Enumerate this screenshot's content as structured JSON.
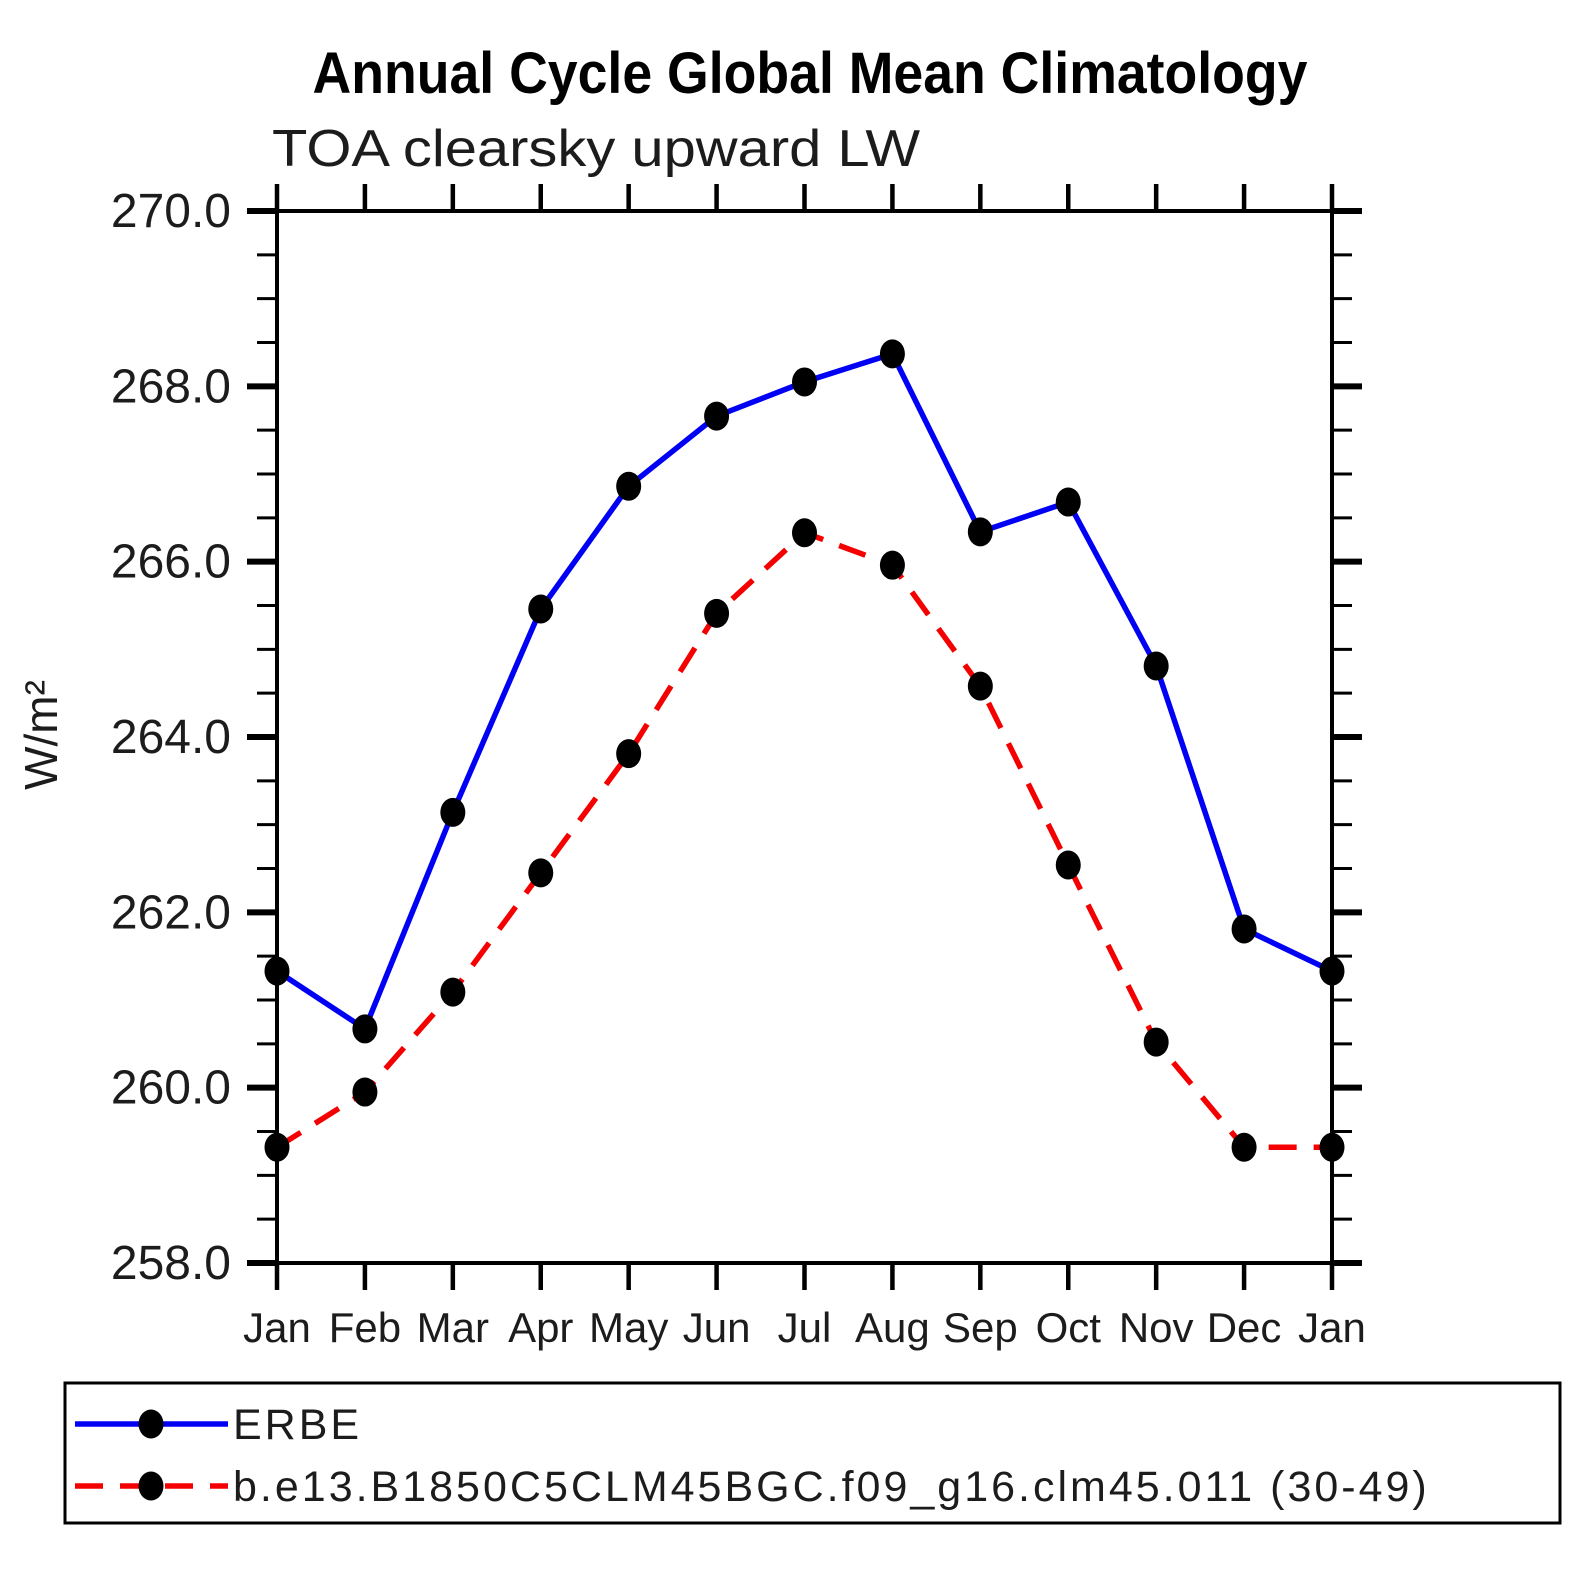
{
  "title": "Annual Cycle Global Mean Climatology",
  "subtitle": "TOA clearsky upward LW",
  "ylabel": "W/m²",
  "chart_data": {
    "type": "line",
    "categories": [
      "Jan",
      "Feb",
      "Mar",
      "Apr",
      "May",
      "Jun",
      "Jul",
      "Aug",
      "Sep",
      "Oct",
      "Nov",
      "Dec",
      "Jan"
    ],
    "series": [
      {
        "name": "ERBE",
        "color": "#0000f5",
        "linestyle": "solid",
        "marker": "filled-circle",
        "marker_color": "#000000",
        "values": [
          261.33,
          260.67,
          263.14,
          265.46,
          266.86,
          267.66,
          268.05,
          268.37,
          266.34,
          266.68,
          264.81,
          261.81,
          261.33
        ]
      },
      {
        "name": "b.e13.B1850C5CLM45BGC.f09_g16.clm45.011 (30-49)",
        "color": "#f50000",
        "linestyle": "dashed",
        "marker": "filled-circle",
        "marker_color": "#000000",
        "values": [
          259.32,
          259.95,
          261.09,
          262.45,
          263.81,
          265.41,
          266.33,
          265.96,
          264.58,
          262.54,
          260.52,
          259.32,
          259.32
        ]
      }
    ],
    "title": "Annual Cycle Global Mean Climatology",
    "subtitle": "TOA clearsky upward LW",
    "xlabel": "",
    "ylabel": "W/m²",
    "ylim": [
      258.0,
      270.0
    ],
    "yticks": [
      258.0,
      260.0,
      262.0,
      264.0,
      266.0,
      268.0,
      270.0
    ],
    "ytick_minor_interval": 0.5,
    "ytick_label_format": "one_decimal",
    "grid": false,
    "legend_position": "bottom"
  },
  "colors": {
    "axis": "#000000",
    "marker": "#000000",
    "erbe_line": "#0000f5",
    "model_line": "#f50000"
  }
}
